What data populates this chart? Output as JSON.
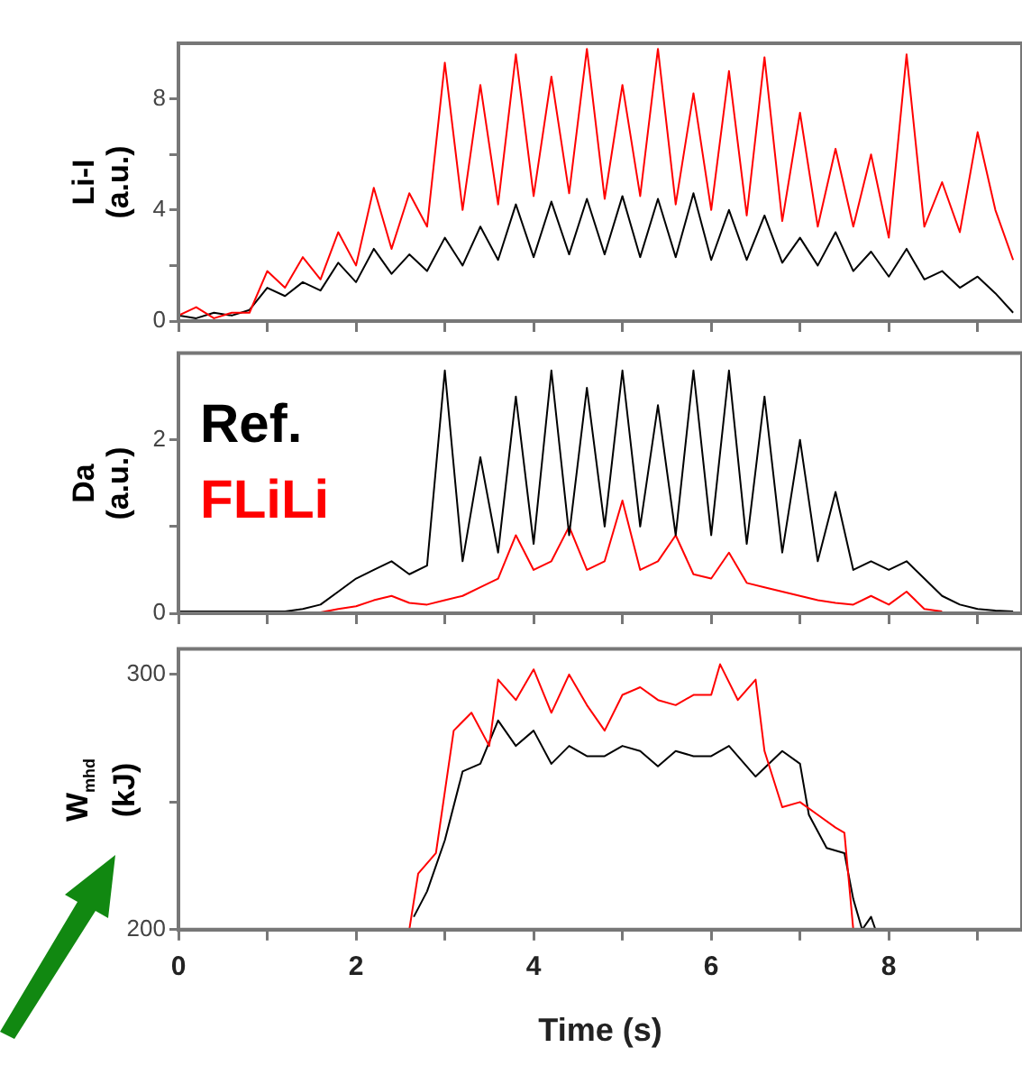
{
  "chart_data": [
    {
      "type": "line",
      "ylabel": "Li-I (a.u.)",
      "xlim": [
        0,
        9.5
      ],
      "xticks": [
        0,
        {
          "value": 1,
          "label": null
        },
        2,
        {
          "value": 3,
          "label": null
        },
        4,
        {
          "value": 5,
          "label": null
        },
        6,
        {
          "value": 7,
          "label": null
        },
        8,
        {
          "value": 9,
          "label": null
        }
      ],
      "ylim": [
        0,
        10
      ],
      "yticks": [
        0,
        {
          "value": 2,
          "label": null
        },
        4,
        {
          "value": 6,
          "label": null
        },
        8
      ],
      "tick_labels": "y",
      "x": [
        0,
        0.2,
        0.4,
        0.6,
        0.8,
        1.0,
        1.2,
        1.4,
        1.6,
        1.8,
        2.0,
        2.2,
        2.4,
        2.6,
        2.8,
        3.0,
        3.2,
        3.4,
        3.6,
        3.8,
        4.0,
        4.2,
        4.4,
        4.6,
        4.8,
        5.0,
        5.2,
        5.4,
        5.6,
        5.8,
        6.0,
        6.2,
        6.4,
        6.6,
        6.8,
        7.0,
        7.2,
        7.4,
        7.6,
        7.8,
        8.0,
        8.2,
        8.4,
        8.6,
        8.8,
        9.0,
        9.2,
        9.4
      ],
      "series": [
        {
          "color": "#ff0000",
          "values": [
            0.2,
            0.5,
            0.1,
            0.3,
            0.3,
            1.8,
            1.2,
            2.3,
            1.5,
            3.2,
            2.0,
            4.8,
            2.6,
            4.6,
            3.4,
            9.3,
            4.0,
            8.5,
            4.2,
            9.6,
            4.5,
            8.8,
            4.6,
            9.8,
            4.4,
            8.5,
            4.5,
            9.8,
            4.2,
            8.2,
            4.0,
            9.0,
            3.8,
            9.5,
            3.6,
            7.5,
            3.4,
            6.2,
            3.4,
            6.0,
            3.0,
            9.6,
            3.4,
            5.0,
            3.2,
            6.8,
            4.0,
            2.2
          ]
        },
        {
          "color": "#000000",
          "values": [
            0.2,
            0.1,
            0.3,
            0.2,
            0.4,
            1.2,
            0.9,
            1.4,
            1.1,
            2.1,
            1.4,
            2.6,
            1.7,
            2.4,
            1.8,
            3.0,
            2.0,
            3.4,
            2.2,
            4.2,
            2.3,
            4.3,
            2.4,
            4.4,
            2.4,
            4.5,
            2.3,
            4.4,
            2.3,
            4.6,
            2.2,
            4.0,
            2.2,
            3.8,
            2.1,
            3.0,
            2.0,
            3.2,
            1.8,
            2.5,
            1.6,
            2.6,
            1.5,
            1.8,
            1.2,
            1.6,
            1.0,
            0.3
          ]
        }
      ]
    },
    {
      "type": "line",
      "ylabel": "Da (a.u.)",
      "legend": "top left",
      "xlim": [
        0,
        9.5
      ],
      "xticks": [
        0,
        {
          "value": 1,
          "label": null
        },
        2,
        {
          "value": 3,
          "label": null
        },
        4,
        {
          "value": 5,
          "label": null
        },
        6,
        {
          "value": 7,
          "label": null
        },
        8,
        {
          "value": 9,
          "label": null
        }
      ],
      "ylim": [
        0,
        3
      ],
      "yticks": [
        0,
        {
          "value": 1,
          "label": null
        },
        2
      ],
      "tick_labels": "y",
      "x": [
        0,
        0.2,
        0.4,
        0.6,
        0.8,
        1.0,
        1.2,
        1.4,
        1.6,
        1.8,
        2.0,
        2.2,
        2.4,
        2.6,
        2.8,
        3.0,
        3.2,
        3.4,
        3.6,
        3.8,
        4.0,
        4.2,
        4.4,
        4.6,
        4.8,
        5.0,
        5.2,
        5.4,
        5.6,
        5.8,
        6.0,
        6.2,
        6.4,
        6.6,
        6.8,
        7.0,
        7.2,
        7.4,
        7.6,
        7.8,
        8.0,
        8.2,
        8.4,
        8.6,
        8.8,
        9.0,
        9.2,
        9.4
      ],
      "series": [
        {
          "name": "Ref.",
          "color": "#000000",
          "values": [
            0.02,
            0.02,
            0.02,
            0.02,
            0.02,
            0.02,
            0.02,
            0.05,
            0.1,
            0.25,
            0.4,
            0.5,
            0.6,
            0.45,
            0.55,
            2.8,
            0.6,
            1.8,
            0.7,
            2.5,
            0.8,
            2.8,
            0.9,
            2.6,
            1.0,
            2.8,
            1.0,
            2.4,
            0.9,
            2.8,
            0.9,
            2.8,
            0.8,
            2.5,
            0.7,
            2.0,
            0.6,
            1.4,
            0.5,
            0.6,
            0.5,
            0.6,
            0.4,
            0.2,
            0.1,
            0.05,
            0.03,
            0.02
          ]
        },
        {
          "name": "FLiLi",
          "color": "#ff0000",
          "values": [
            null,
            null,
            null,
            null,
            null,
            null,
            null,
            null,
            0.01,
            0.05,
            0.08,
            0.15,
            0.2,
            0.12,
            0.1,
            0.15,
            0.2,
            0.3,
            0.4,
            0.9,
            0.5,
            0.6,
            1.0,
            0.5,
            0.6,
            1.3,
            0.5,
            0.6,
            0.9,
            0.45,
            0.4,
            0.7,
            0.35,
            0.3,
            0.25,
            0.2,
            0.15,
            0.12,
            0.1,
            0.2,
            0.1,
            0.25,
            0.05,
            0.02,
            null,
            null,
            null,
            null
          ]
        }
      ]
    },
    {
      "type": "line",
      "ylabel": "W$_{mhd}$ (kJ)",
      "xlabel": "Time (s)",
      "xlim": [
        0,
        9.5
      ],
      "xticks": [
        0,
        {
          "value": 1,
          "label": null
        },
        2,
        {
          "value": 3,
          "label": null
        },
        4,
        {
          "value": 5,
          "label": null
        },
        6,
        {
          "value": 7,
          "label": null
        },
        8,
        {
          "value": 9,
          "label": null
        }
      ],
      "ylim": [
        200,
        310
      ],
      "yticks": [
        200,
        {
          "value": 250,
          "label": null
        },
        300
      ],
      "series": [
        {
          "color": "#ff0000",
          "x": [
            2.6,
            2.7,
            2.9,
            3.1,
            3.3,
            3.5,
            3.6,
            3.8,
            4.0,
            4.2,
            4.4,
            4.6,
            4.8,
            5.0,
            5.2,
            5.4,
            5.6,
            5.8,
            6.0,
            6.1,
            6.3,
            6.5,
            6.6,
            6.8,
            7.0,
            7.2,
            7.4,
            7.5,
            7.6
          ],
          "values": [
            200,
            222,
            230,
            278,
            285,
            272,
            298,
            290,
            302,
            285,
            300,
            288,
            278,
            292,
            295,
            290,
            288,
            292,
            292,
            304,
            290,
            298,
            270,
            248,
            250,
            245,
            240,
            238,
            200
          ]
        },
        {
          "color": "#000000",
          "x": [
            2.65,
            2.8,
            3.0,
            3.2,
            3.4,
            3.6,
            3.8,
            4.0,
            4.2,
            4.4,
            4.6,
            4.8,
            5.0,
            5.2,
            5.4,
            5.6,
            5.8,
            6.0,
            6.2,
            6.5,
            6.8,
            7.0,
            7.1,
            7.3,
            7.5,
            7.6,
            7.7,
            7.8,
            7.85
          ],
          "values": [
            205,
            215,
            235,
            262,
            265,
            282,
            272,
            278,
            265,
            272,
            268,
            268,
            272,
            270,
            264,
            270,
            268,
            268,
            272,
            260,
            270,
            265,
            245,
            232,
            230,
            212,
            200,
            205,
            200
          ]
        }
      ]
    }
  ]
}
